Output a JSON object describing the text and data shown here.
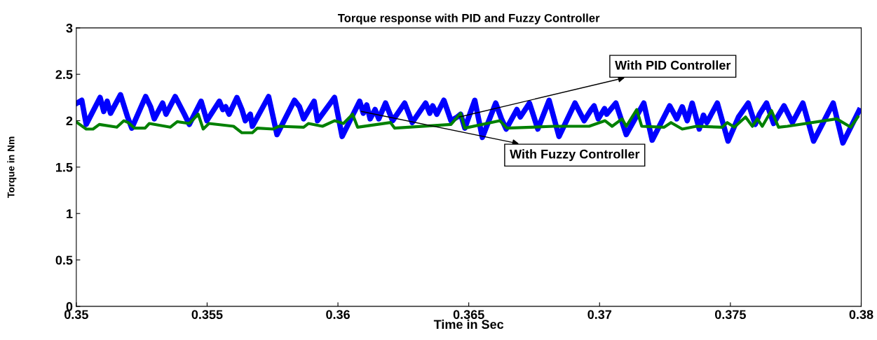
{
  "chart_data": {
    "type": "line",
    "title": "Torque response with PID and Fuzzy Controller",
    "xlabel": "Time in Sec",
    "ylabel": "Torque in Nm",
    "xlim": [
      0.35,
      0.38
    ],
    "xticks": [
      0.35,
      0.355,
      0.36,
      0.365,
      0.37,
      0.375,
      0.38
    ],
    "ylim": [
      0,
      3
    ],
    "yticks": [
      0,
      0.5,
      1,
      1.5,
      2,
      2.5,
      3
    ],
    "grid": false,
    "legend": false,
    "marker": "none",
    "line_style": "solid",
    "annotations": [
      {
        "text": "With PID Controller",
        "x": 0.36464,
        "y": 2.04
      },
      {
        "text": "With Fuzzy Controller",
        "x": 0.36089,
        "y": 2.1
      }
    ],
    "series": [
      {
        "color": "#0000ff",
        "x": [
          0.35003,
          0.35021,
          0.35038,
          0.35091,
          0.35105,
          0.35118,
          0.35131,
          0.35169,
          0.35196,
          0.35212,
          0.35265,
          0.35284,
          0.35298,
          0.3533,
          0.35343,
          0.35378,
          0.35413,
          0.35432,
          0.35477,
          0.35499,
          0.35547,
          0.3556,
          0.35571,
          0.35584,
          0.35614,
          0.35633,
          0.35646,
          0.35665,
          0.35673,
          0.35735,
          0.35767,
          0.35834,
          0.35853,
          0.35869,
          0.35909,
          0.35922,
          0.35987,
          0.36016,
          0.36083,
          0.36097,
          0.3611,
          0.36123,
          0.36142,
          0.36156,
          0.36182,
          0.36209,
          0.36255,
          0.36284,
          0.36335,
          0.36351,
          0.36362,
          0.36378,
          0.36405,
          0.36432,
          0.36456,
          0.36469,
          0.36485,
          0.36523,
          0.36552,
          0.36603,
          0.36625,
          0.36643,
          0.36684,
          0.36697,
          0.36732,
          0.36764,
          0.36807,
          0.36845,
          0.36906,
          0.36928,
          0.36941,
          0.36968,
          0.36979,
          0.36995,
          0.37019,
          0.37027,
          0.37062,
          0.37102,
          0.37169,
          0.37201,
          0.37268,
          0.37295,
          0.37316,
          0.37335,
          0.37354,
          0.37381,
          0.37397,
          0.3741,
          0.3745,
          0.37491,
          0.37531,
          0.37568,
          0.37595,
          0.37611,
          0.37638,
          0.37665,
          0.37705,
          0.37737,
          0.37777,
          0.37818,
          0.37893,
          0.3793,
          0.37992
        ],
        "values": [
          2.19,
          2.22,
          1.96,
          2.25,
          2.1,
          2.21,
          2.08,
          2.28,
          2.04,
          1.92,
          2.26,
          2.15,
          2.02,
          2.19,
          2.07,
          2.26,
          2.07,
          1.96,
          2.21,
          2.0,
          2.21,
          2.12,
          2.15,
          2.07,
          2.25,
          2.12,
          2.0,
          2.07,
          1.94,
          2.26,
          1.85,
          2.22,
          2.15,
          2.02,
          2.21,
          2.0,
          2.25,
          1.83,
          2.21,
          2.08,
          2.17,
          2.02,
          2.12,
          2.02,
          2.19,
          2.0,
          2.19,
          1.98,
          2.19,
          2.08,
          2.16,
          2.07,
          2.22,
          2.0,
          2.04,
          2.07,
          1.92,
          2.22,
          1.82,
          2.19,
          2.02,
          1.91,
          2.12,
          2.04,
          2.19,
          1.91,
          2.22,
          1.83,
          2.19,
          2.07,
          2.0,
          2.12,
          2.16,
          2.02,
          2.13,
          2.07,
          2.19,
          1.85,
          2.19,
          1.79,
          2.16,
          2.02,
          2.15,
          2.0,
          2.19,
          1.91,
          2.06,
          1.98,
          2.19,
          1.78,
          2.04,
          2.19,
          1.96,
          2.07,
          2.19,
          1.97,
          2.16,
          1.98,
          2.19,
          1.78,
          2.19,
          1.76,
          2.11
        ]
      },
      {
        "color": "#008000",
        "x": [
          0.35003,
          0.35038,
          0.35064,
          0.35088,
          0.35155,
          0.35182,
          0.35198,
          0.35223,
          0.35263,
          0.35279,
          0.35359,
          0.35386,
          0.35432,
          0.35466,
          0.35485,
          0.35507,
          0.35601,
          0.35633,
          0.35673,
          0.35692,
          0.35753,
          0.35775,
          0.35869,
          0.35887,
          0.35941,
          0.35987,
          0.36021,
          0.36056,
          0.36075,
          0.36201,
          0.36217,
          0.36432,
          0.36469,
          0.36485,
          0.36619,
          0.36646,
          0.36737,
          0.36826,
          0.3696,
          0.37021,
          0.37048,
          0.37086,
          0.37102,
          0.37142,
          0.37161,
          0.37247,
          0.37273,
          0.37316,
          0.3737,
          0.37469,
          0.37488,
          0.37515,
          0.37558,
          0.37584,
          0.37603,
          0.37622,
          0.37657,
          0.37684,
          0.37718,
          0.37906,
          0.3796,
          0.37987
        ],
        "values": [
          1.98,
          1.91,
          1.91,
          1.96,
          1.93,
          2.0,
          1.98,
          1.92,
          1.92,
          1.97,
          1.93,
          1.99,
          1.97,
          2.07,
          1.91,
          1.97,
          1.94,
          1.87,
          1.87,
          1.92,
          1.91,
          1.94,
          1.93,
          1.97,
          1.94,
          2.0,
          1.97,
          2.07,
          1.93,
          1.98,
          1.92,
          1.96,
          2.08,
          1.92,
          2.0,
          1.92,
          1.93,
          1.94,
          1.94,
          2.0,
          1.94,
          2.02,
          1.94,
          2.12,
          1.94,
          1.93,
          1.98,
          1.91,
          1.94,
          1.93,
          1.98,
          1.93,
          2.04,
          1.94,
          2.02,
          1.94,
          2.11,
          1.93,
          1.94,
          2.02,
          1.93,
          2.04
        ]
      }
    ]
  }
}
